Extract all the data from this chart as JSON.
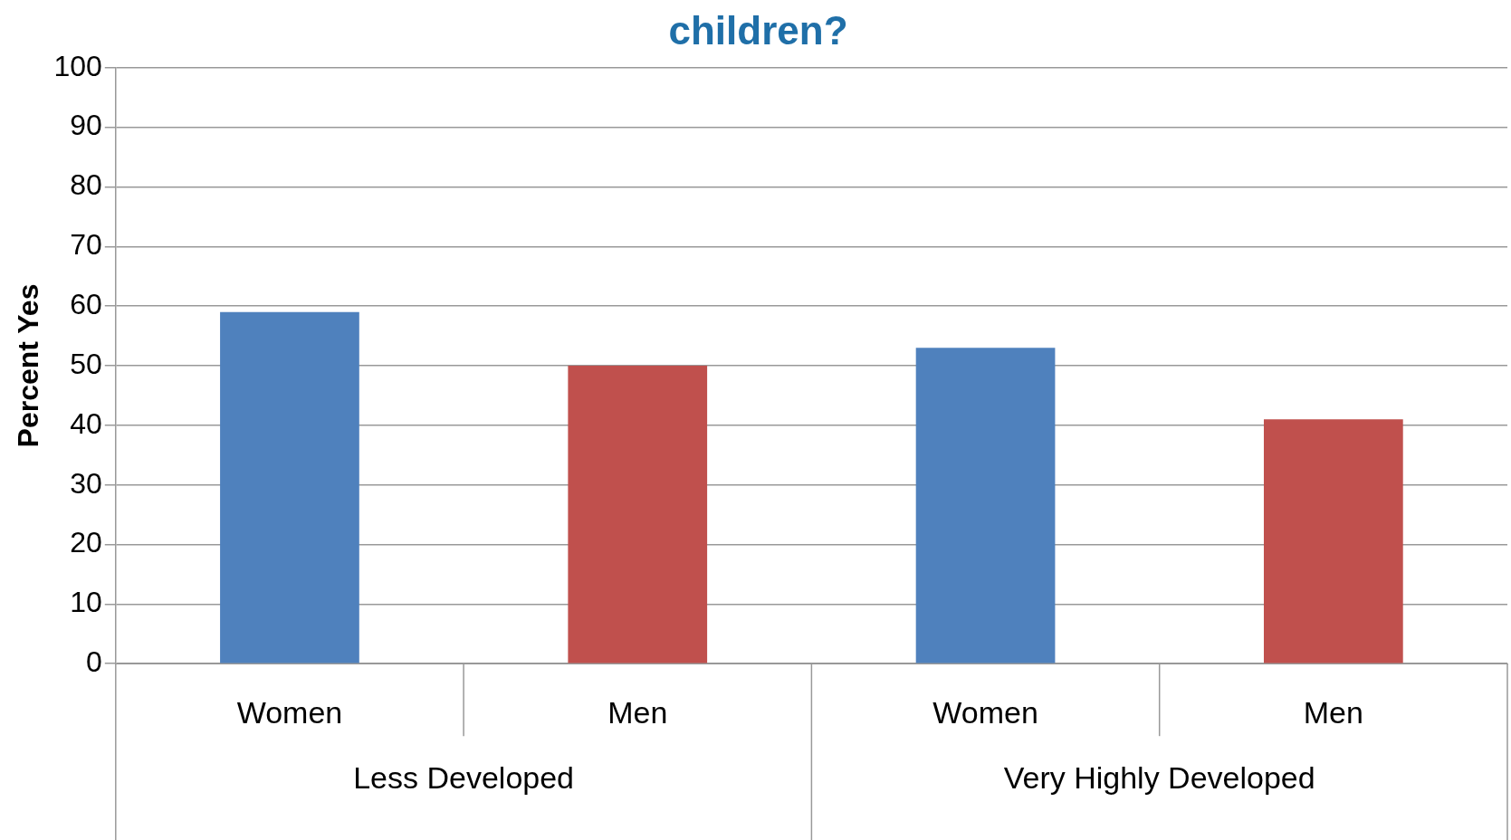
{
  "chart_data": {
    "type": "bar",
    "title": "children?",
    "ylabel": "Percent Yes",
    "categories": [
      "Women",
      "Men",
      "Women",
      "Men"
    ],
    "values": [
      59,
      50,
      53,
      41
    ],
    "colors": [
      "#4f81bd",
      "#c0504d",
      "#4f81bd",
      "#c0504d"
    ],
    "annotations": [
      "Less Developed",
      "Very Highly Developed"
    ],
    "ylim": [
      0,
      100
    ],
    "yticks": [
      0,
      10,
      20,
      30,
      40,
      50,
      60,
      70,
      80,
      90,
      100
    ],
    "grid": "y",
    "legend": false
  }
}
